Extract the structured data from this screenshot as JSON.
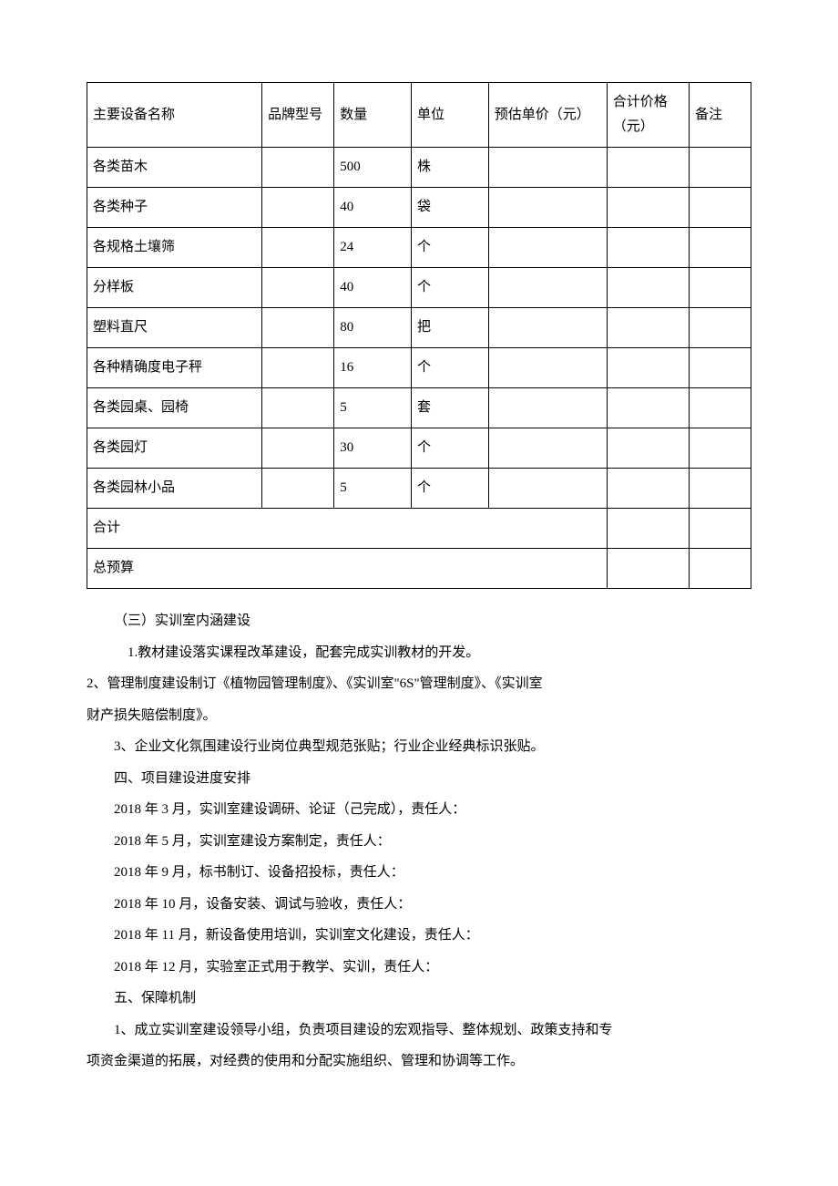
{
  "table": {
    "headers": {
      "name": "主要设备名称",
      "brand": "品牌型号",
      "quantity": "数量",
      "unit": "单位",
      "unit_price": "预估单价（元）",
      "total_price": "合计价格（元）",
      "note": "备注"
    },
    "rows": [
      {
        "name": "各类苗木",
        "brand": "",
        "quantity": "500",
        "unit": "株",
        "unit_price": "",
        "total_price": "",
        "note": ""
      },
      {
        "name": "各类种子",
        "brand": "",
        "quantity": "40",
        "unit": "袋",
        "unit_price": "",
        "total_price": "",
        "note": ""
      },
      {
        "name": "各规格土壤筛",
        "brand": "",
        "quantity": "24",
        "unit": "个",
        "unit_price": "",
        "total_price": "",
        "note": ""
      },
      {
        "name": "分样板",
        "brand": "",
        "quantity": "40",
        "unit": "个",
        "unit_price": "",
        "total_price": "",
        "note": ""
      },
      {
        "name": "塑料直尺",
        "brand": "",
        "quantity": "80",
        "unit": "把",
        "unit_price": "",
        "total_price": "",
        "note": ""
      },
      {
        "name": "各种精确度电子秤",
        "brand": "",
        "quantity": "16",
        "unit": "个",
        "unit_price": "",
        "total_price": "",
        "note": ""
      },
      {
        "name": "各类园桌、园椅",
        "brand": "",
        "quantity": "5",
        "unit": "套",
        "unit_price": "",
        "total_price": "",
        "note": ""
      },
      {
        "name": "各类园灯",
        "brand": "",
        "quantity": "30",
        "unit": "个",
        "unit_price": "",
        "total_price": "",
        "note": ""
      },
      {
        "name": "各类园林小品",
        "brand": "",
        "quantity": "5",
        "unit": "个",
        "unit_price": "",
        "total_price": "",
        "note": ""
      }
    ],
    "summary_rows": {
      "subtotal_label": "合计",
      "total_label": "总预算"
    }
  },
  "sections": {
    "s3_title": "（三）实训室内涵建设",
    "s3_item1": "1.教材建设落实课程改革建设，配套完成实训教材的开发。",
    "s3_item2a": "2、管理制度建设制订《植物园管理制度》、《实训室\"6S\"管理制度》、《实训室",
    "s3_item2b": "财产损失赔偿制度》。",
    "s3_item3": "3、企业文化氛围建设行业岗位典型规范张贴；行业企业经典标识张贴。",
    "s4_title": "四、项目建设进度安排",
    "s4_item1": "2018 年 3 月，实训室建设调研、论证（己完成），责任人：",
    "s4_item2": "2018 年 5 月，实训室建设方案制定，责任人：",
    "s4_item3": "2018 年 9 月，标书制订、设备招投标，责任人：",
    "s4_item4": "2018 年 10 月，设备安装、调试与验收，责任人：",
    "s4_item5": "2018 年 11 月，新设备使用培训，实训室文化建设，责任人：",
    "s4_item6": "2018 年 12 月，实验室正式用于教学、实训，责任人：",
    "s5_title": "五、保障机制",
    "s5_item1a": "1、成立实训室建设领导小组，负责项目建设的宏观指导、整体规划、政策支持和专",
    "s5_item1b": "项资金渠道的拓展，对经费的使用和分配实施组织、管理和协调等工作。"
  }
}
